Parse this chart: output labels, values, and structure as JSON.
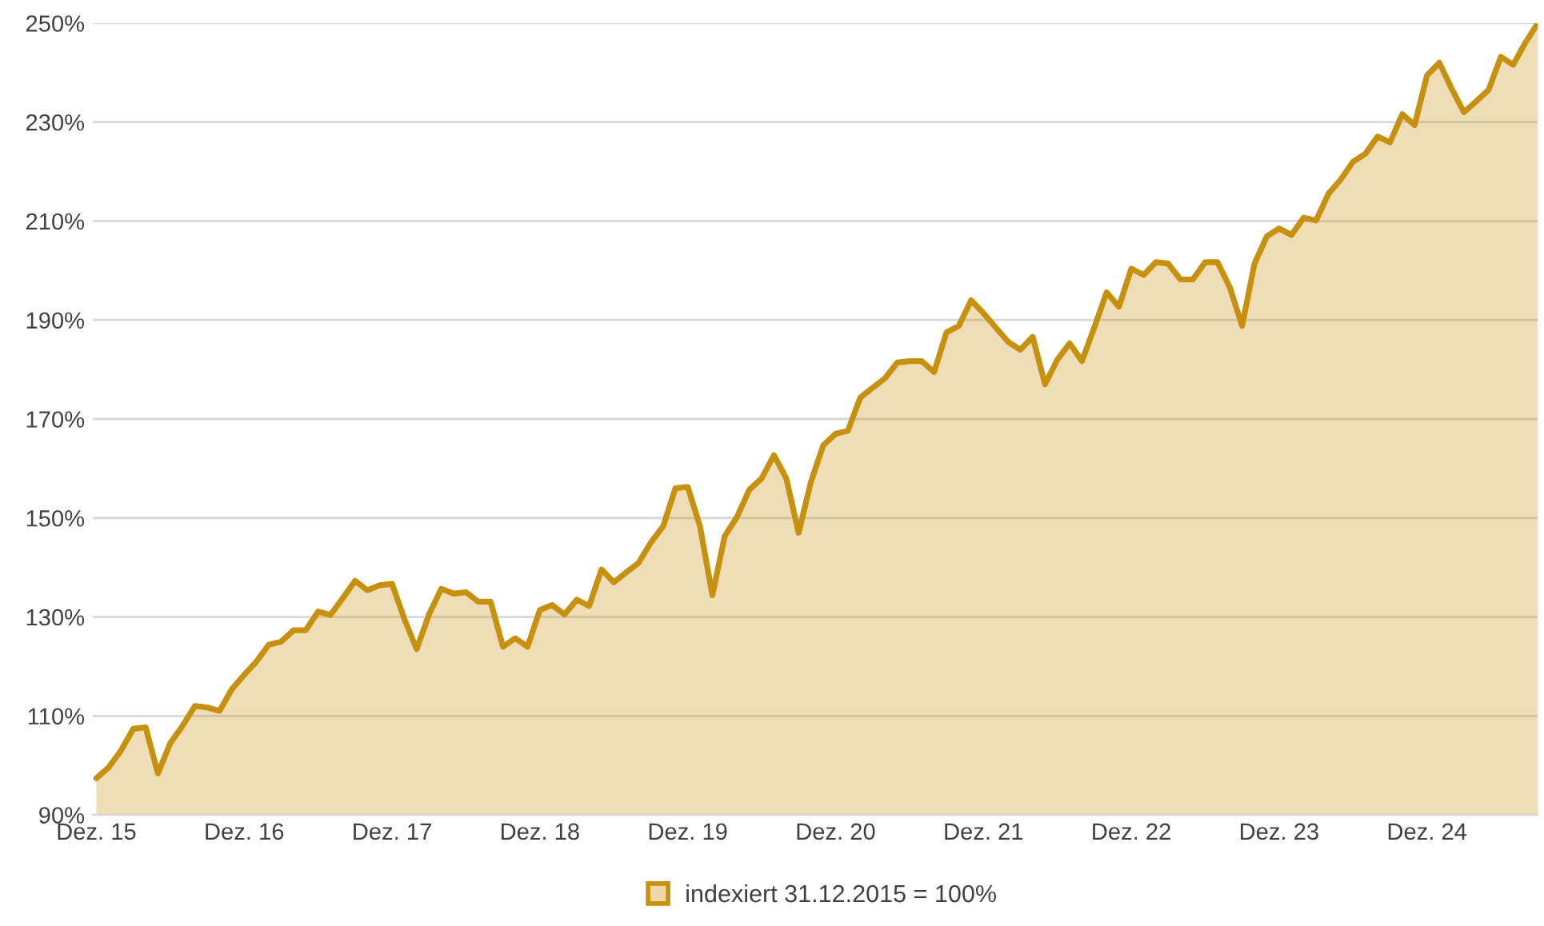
{
  "chart_data": {
    "type": "area",
    "categories": [
      "Dez. 15",
      null,
      null,
      null,
      null,
      null,
      null,
      null,
      null,
      null,
      null,
      null,
      "Dez. 16",
      null,
      null,
      null,
      null,
      null,
      null,
      null,
      null,
      null,
      null,
      null,
      "Dez. 17",
      null,
      null,
      null,
      null,
      null,
      null,
      null,
      null,
      null,
      null,
      null,
      "Dez. 18",
      null,
      null,
      null,
      null,
      null,
      null,
      null,
      null,
      null,
      null,
      null,
      "Dez. 19",
      null,
      null,
      null,
      null,
      null,
      null,
      null,
      null,
      null,
      null,
      null,
      "Dez. 20",
      null,
      null,
      null,
      null,
      null,
      null,
      null,
      null,
      null,
      null,
      null,
      "Dez. 21",
      null,
      null,
      null,
      null,
      null,
      null,
      null,
      null,
      null,
      null,
      null,
      "Dez. 22",
      null,
      null,
      null,
      null,
      null,
      null,
      null,
      null,
      null,
      null,
      null,
      "Dez. 23",
      null,
      null,
      null,
      null,
      null,
      null,
      null,
      null,
      null,
      null,
      null,
      "Dez. 24",
      null,
      null,
      null,
      null,
      null,
      null,
      null,
      null,
      null
    ],
    "series": [
      {
        "name": "indexiert 31.12.2015 = 100%",
        "color": "#c8900f",
        "values": [
          97.4,
          99.6,
          103,
          107.4,
          107.7,
          98.4,
          104.5,
          108,
          112,
          111.7,
          111,
          115.4,
          118.3,
          121,
          124.4,
          125,
          127.3,
          127.3,
          131.1,
          130.4,
          133.8,
          137.3,
          135.4,
          136.4,
          136.7,
          129.6,
          123.5,
          130.5,
          135.7,
          134.7,
          135,
          133.1,
          133.1,
          124,
          125.7,
          124,
          131.4,
          132.4,
          130.5,
          133.5,
          132.2,
          139.6,
          137,
          139,
          140.9,
          145,
          148.3,
          156,
          156.3,
          148.3,
          134.4,
          146.3,
          150.2,
          155.7,
          158,
          162.7,
          158,
          147,
          157.3,
          164.7,
          167,
          167.6,
          174.3,
          176.3,
          178.2,
          181.4,
          181.7,
          181.7,
          179.5,
          187.5,
          188.8,
          194,
          191.4,
          188.5,
          185.6,
          184,
          186.6,
          177,
          182,
          185.3,
          181.7,
          188.5,
          195.6,
          192.7,
          200.4,
          199.1,
          201.7,
          201.4,
          198.2,
          198.2,
          201.7,
          201.7,
          196.6,
          188.8,
          201.4,
          206.9,
          208.5,
          207.2,
          210.7,
          210.1,
          215.5,
          218.4,
          222,
          223.6,
          227.1,
          225.9,
          231.6,
          229.4,
          239.4,
          242,
          236.8,
          232,
          234.2,
          236.5,
          243.2,
          241.6,
          246.1,
          250
        ]
      }
    ],
    "ylim": [
      90,
      250
    ],
    "yticks": [
      {
        "value": 90,
        "label": "90%"
      },
      {
        "value": 110,
        "label": "110%"
      },
      {
        "value": 130,
        "label": "130%"
      },
      {
        "value": 150,
        "label": "150%"
      },
      {
        "value": 170,
        "label": "170%"
      },
      {
        "value": 190,
        "label": "190%"
      },
      {
        "value": 210,
        "label": "210%"
      },
      {
        "value": 230,
        "label": "230%"
      },
      {
        "value": 250,
        "label": "250%"
      }
    ],
    "grid": "y",
    "legend": "bottom",
    "marker": "none",
    "line_style": "solid"
  }
}
